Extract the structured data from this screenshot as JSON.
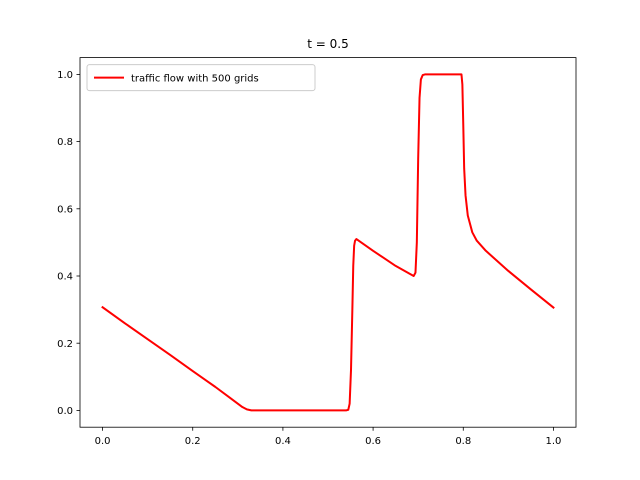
{
  "chart_data": {
    "type": "line",
    "title": "t = 0.5",
    "xlabel": "",
    "ylabel": "",
    "xlim": [
      -0.05,
      1.05
    ],
    "ylim": [
      -0.05,
      1.05
    ],
    "x_ticks": [
      0.0,
      0.2,
      0.4,
      0.6,
      0.8,
      1.0
    ],
    "x_tick_labels": [
      "0.0",
      "0.2",
      "0.4",
      "0.6",
      "0.8",
      "1.0"
    ],
    "y_ticks": [
      0.0,
      0.2,
      0.4,
      0.6,
      0.8,
      1.0
    ],
    "y_tick_labels": [
      "0.0",
      "0.2",
      "0.4",
      "0.6",
      "0.8",
      "1.0"
    ],
    "grid": false,
    "legend": {
      "position": "upper-left"
    },
    "series": [
      {
        "name": "traffic flow with 500 grids",
        "color": "#ff0000",
        "x": [
          0.0,
          0.05,
          0.1,
          0.15,
          0.2,
          0.25,
          0.28,
          0.3,
          0.31,
          0.32,
          0.33,
          0.36,
          0.4,
          0.45,
          0.5,
          0.54,
          0.545,
          0.548,
          0.551,
          0.554,
          0.556,
          0.558,
          0.56,
          0.563,
          0.6,
          0.65,
          0.69,
          0.694,
          0.697,
          0.7,
          0.703,
          0.706,
          0.71,
          0.715,
          0.75,
          0.79,
          0.796,
          0.798,
          0.8,
          0.802,
          0.805,
          0.81,
          0.82,
          0.83,
          0.85,
          0.9,
          0.95,
          1.0
        ],
        "y": [
          0.307,
          0.259,
          0.212,
          0.165,
          0.117,
          0.07,
          0.04,
          0.02,
          0.01,
          0.003,
          0.0,
          0.0,
          0.0,
          0.0,
          0.0,
          0.0,
          0.002,
          0.02,
          0.12,
          0.3,
          0.43,
          0.49,
          0.505,
          0.51,
          0.475,
          0.43,
          0.4,
          0.41,
          0.5,
          0.75,
          0.93,
          0.985,
          0.998,
          1.0,
          1.0,
          1.0,
          1.0,
          0.97,
          0.85,
          0.72,
          0.64,
          0.58,
          0.53,
          0.505,
          0.475,
          0.415,
          0.36,
          0.306
        ]
      }
    ]
  }
}
